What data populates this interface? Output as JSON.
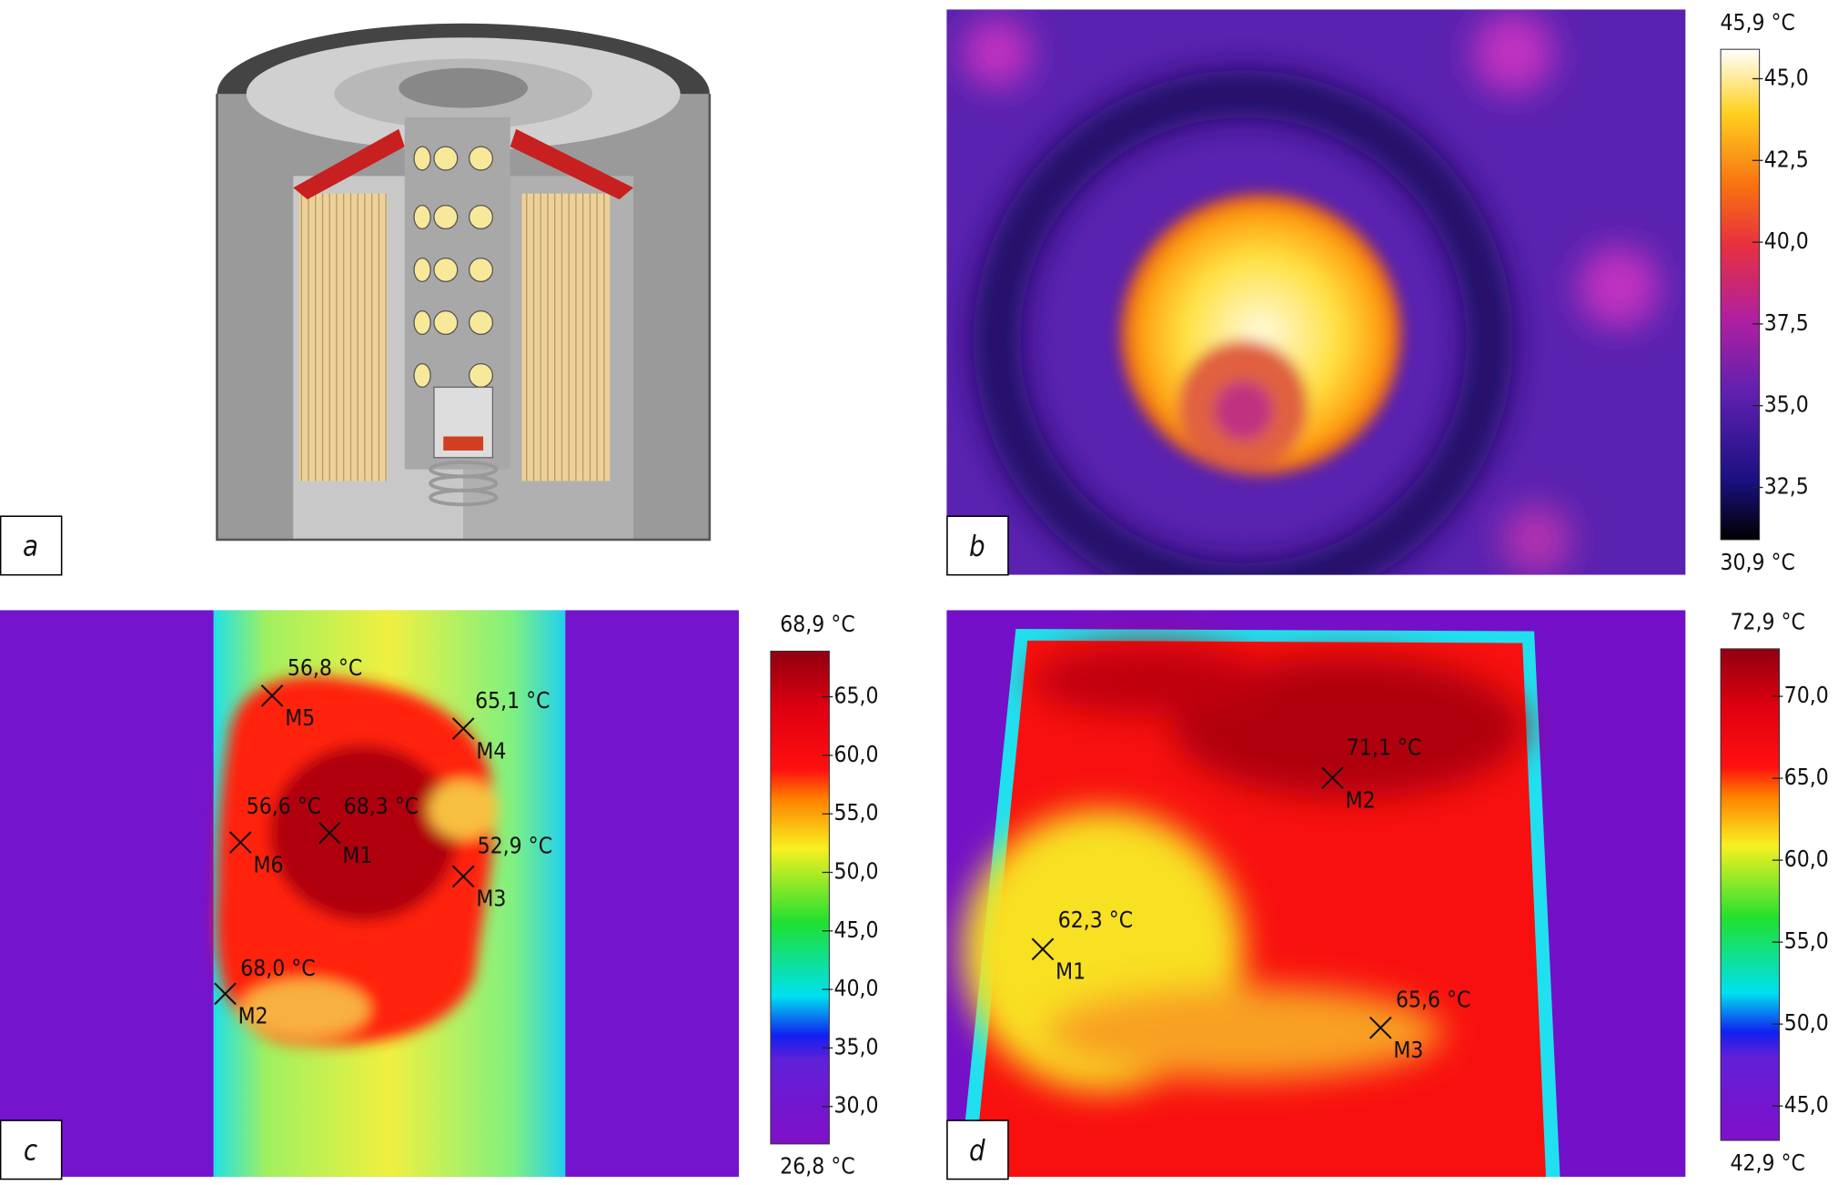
{
  "panels": [
    {
      "label": "a"
    },
    {
      "label": "b",
      "scale": {
        "max": {
          "value": 45.9,
          "label": "45,9 °C"
        },
        "min": {
          "value": 30.9,
          "label": "30,9 °C"
        },
        "ticks": [
          {
            "value": 45,
            "label": "45,0"
          },
          {
            "value": 42.5,
            "label": "42,5"
          },
          {
            "value": 40,
            "label": "40,0"
          },
          {
            "value": 37.5,
            "label": "37,5"
          },
          {
            "value": 35,
            "label": "35,0"
          },
          {
            "value": 32.5,
            "label": "32,5"
          }
        ]
      }
    },
    {
      "label": "c",
      "scale": {
        "max": {
          "value": 68.9,
          "label": "68,9 °C"
        },
        "min": {
          "value": 26.8,
          "label": "26,8 °C"
        },
        "ticks": [
          {
            "value": 65,
            "label": "65,0"
          },
          {
            "value": 60,
            "label": "60,0"
          },
          {
            "value": 55,
            "label": "55,0"
          },
          {
            "value": 50,
            "label": "50,0"
          },
          {
            "value": 45,
            "label": "45,0"
          },
          {
            "value": 40,
            "label": "40,0"
          },
          {
            "value": 35,
            "label": "35,0"
          },
          {
            "value": 30,
            "label": "30,0"
          }
        ]
      },
      "markers": [
        {
          "name": "M5",
          "reading": "56,8 °C"
        },
        {
          "name": "M4",
          "reading": "65,1 °C"
        },
        {
          "name": "M6",
          "reading": "56,6 °C"
        },
        {
          "name": "M1",
          "reading": "68,3 °C"
        },
        {
          "name": "M3",
          "reading": "52,9 °C"
        },
        {
          "name": "M2",
          "reading": "68,0 °C"
        }
      ]
    },
    {
      "label": "d",
      "scale": {
        "max": {
          "value": 72.9,
          "label": "72,9 °C"
        },
        "min": {
          "value": 42.9,
          "label": "42,9 °C"
        },
        "ticks": [
          {
            "value": 70,
            "label": "70,0"
          },
          {
            "value": 65,
            "label": "65,0"
          },
          {
            "value": 60,
            "label": "60,0"
          },
          {
            "value": 55,
            "label": "55,0"
          },
          {
            "value": 50,
            "label": "50,0"
          },
          {
            "value": 45,
            "label": "45,0"
          }
        ]
      },
      "markers": [
        {
          "name": "M2",
          "reading": "71,1 °C"
        },
        {
          "name": "M1",
          "reading": "62,3 °C"
        },
        {
          "name": "M3",
          "reading": "65,6 °C"
        }
      ]
    }
  ]
}
